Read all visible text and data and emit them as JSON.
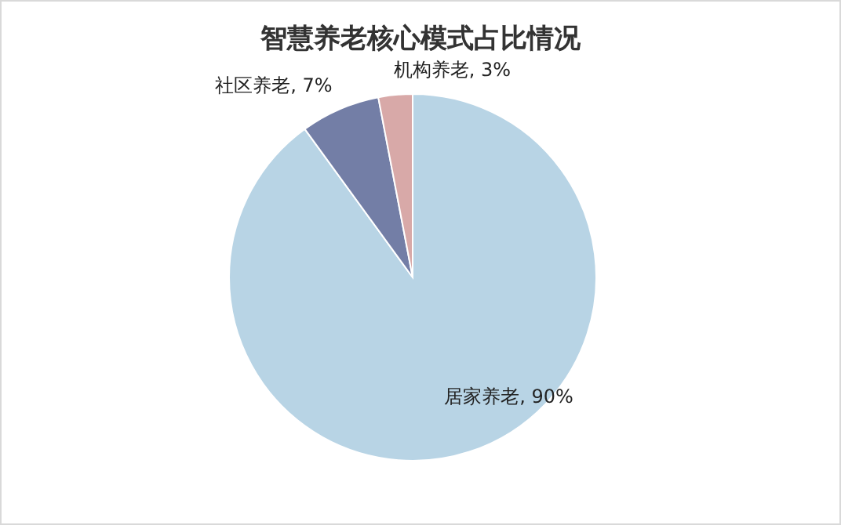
{
  "chart_data": {
    "type": "pie",
    "title": "智慧养老核心模式占比情况",
    "categories": [
      "居家养老",
      "社区养老",
      "机构养老"
    ],
    "values": [
      90,
      7,
      3
    ],
    "colors": [
      "#b8d4e5",
      "#737ea6",
      "#d8a9a8"
    ],
    "value_labels": [
      ", 90%",
      ", 7%",
      ", 3%"
    ],
    "legend": false
  }
}
